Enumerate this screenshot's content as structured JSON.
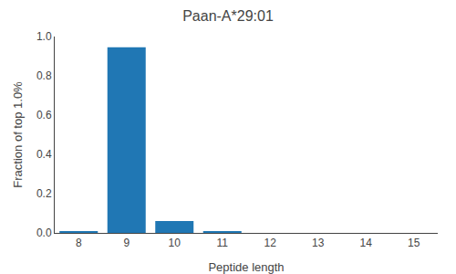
{
  "chart_data": {
    "type": "bar",
    "title": "Paan-A*29:01",
    "xlabel": "Peptide length",
    "ylabel": "Fraction of top 1.0%",
    "x": [
      8,
      9,
      10,
      11,
      12,
      13,
      14,
      15
    ],
    "values": [
      0.005,
      0.945,
      0.06,
      0.005,
      0.0,
      0.0,
      0.0,
      0.0
    ],
    "color": "#2077b4",
    "xlim": [
      7.5,
      15.5
    ],
    "ylim": [
      0.0,
      1.0
    ],
    "xticks": [
      8,
      9,
      10,
      11,
      12,
      13,
      14,
      15
    ],
    "yticks": [
      {
        "value": 0.0,
        "label": "0.0"
      },
      0.2,
      0.4,
      0.6,
      0.8,
      {
        "value": 1.0,
        "label": "1.0"
      }
    ],
    "grid": false
  }
}
